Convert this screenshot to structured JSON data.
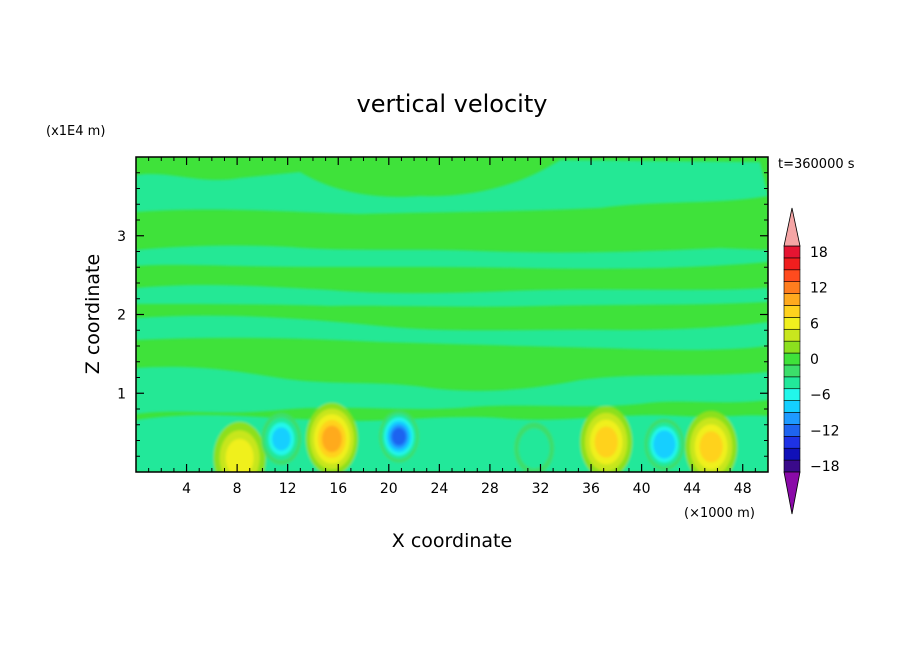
{
  "chart_data": {
    "type": "heatmap",
    "title": "vertical velocity",
    "xlabel": "X coordinate",
    "ylabel": "Z coordinate",
    "x_unit": "(×1000 m)",
    "y_unit": "(x1E4 m)",
    "time_label": "t=360000 s",
    "xlim": [
      0,
      50
    ],
    "ylim": [
      0,
      4
    ],
    "x_ticks": [
      "4",
      "8",
      "12",
      "16",
      "20",
      "24",
      "28",
      "32",
      "36",
      "40",
      "44",
      "48"
    ],
    "y_ticks": [
      "1",
      "2",
      "3"
    ],
    "colorbar": {
      "range": [
        -20,
        20
      ],
      "step": 2,
      "tick_labels": [
        "18",
        "12",
        "6",
        "0",
        "−6",
        "−12",
        "−18"
      ],
      "tick_values": [
        18,
        12,
        6,
        0,
        -6,
        -12,
        -18
      ],
      "colors": [
        "#8a0aa8",
        "#3a0a8a",
        "#1010b8",
        "#1e32e6",
        "#1e64f0",
        "#1e9aff",
        "#14cfff",
        "#22f7ea",
        "#22e89a",
        "#3cde6a",
        "#3fe23a",
        "#8ce01e",
        "#c8e61e",
        "#f0f01e",
        "#ffd21e",
        "#ffaa1e",
        "#ff7d1e",
        "#ff4b1e",
        "#f01e1e",
        "#e61432",
        "#f5a5a5"
      ]
    },
    "features": [
      {
        "x": 8.2,
        "z": 0.18,
        "value": 5,
        "kind": "updraft"
      },
      {
        "x": 15.5,
        "z": 0.42,
        "value": 9,
        "kind": "updraft"
      },
      {
        "x": 20.8,
        "z": 0.45,
        "value": -12,
        "kind": "downdraft"
      },
      {
        "x": 11.5,
        "z": 0.42,
        "value": -8,
        "kind": "downdraft"
      },
      {
        "x": 37.2,
        "z": 0.38,
        "value": 8,
        "kind": "updraft"
      },
      {
        "x": 41.8,
        "z": 0.35,
        "value": -9,
        "kind": "downdraft"
      },
      {
        "x": 45.5,
        "z": 0.32,
        "value": 8,
        "kind": "updraft"
      },
      {
        "x": 31.5,
        "z": 0.3,
        "value": -5,
        "kind": "downdraft"
      }
    ]
  }
}
